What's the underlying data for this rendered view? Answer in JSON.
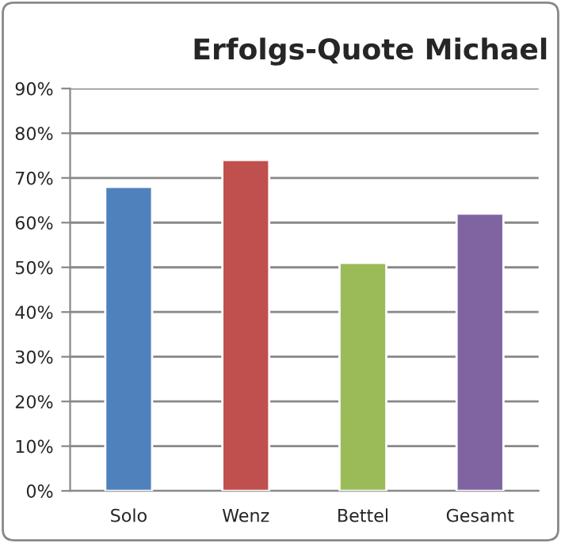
{
  "chart_data": {
    "type": "bar",
    "title": "Erfolgs-Quote Michael",
    "categories": [
      "Solo",
      "Wenz",
      "Bettel",
      "Gesamt"
    ],
    "values": [
      68,
      74,
      51,
      62
    ],
    "colors": [
      "#4f81bd",
      "#c0504d",
      "#9bbb59",
      "#8064a2"
    ],
    "ylim": [
      0,
      90
    ],
    "yticks": [
      {
        "value": 0,
        "label": "0%"
      },
      {
        "value": 10,
        "label": "10%"
      },
      {
        "value": 20,
        "label": "20%"
      },
      {
        "value": 30,
        "label": "30%"
      },
      {
        "value": 40,
        "label": "40%"
      },
      {
        "value": 50,
        "label": "50%"
      },
      {
        "value": 60,
        "label": "60%"
      },
      {
        "value": 70,
        "label": "70%"
      },
      {
        "value": 80,
        "label": "80%"
      },
      {
        "value": 90,
        "label": "90%"
      }
    ],
    "grid": "y",
    "legend": false
  }
}
